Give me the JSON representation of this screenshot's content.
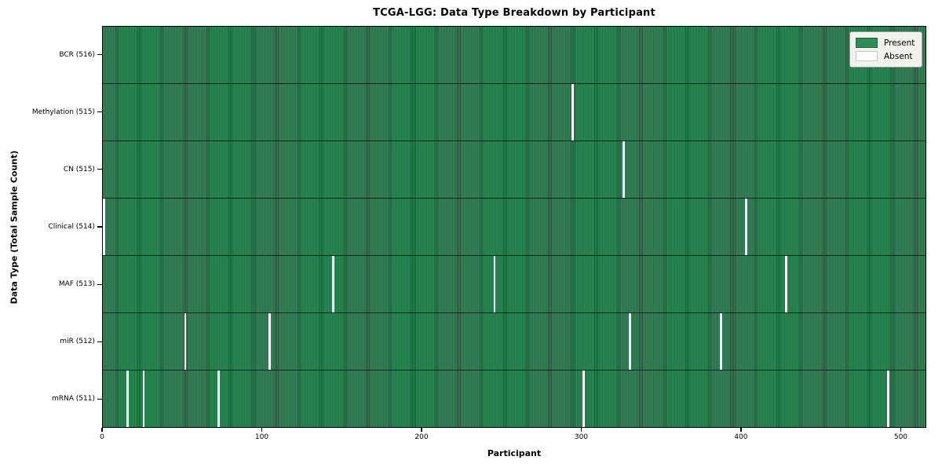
{
  "chart_data": {
    "type": "heatmap",
    "title": "TCGA-LGG: Data Type Breakdown by Participant",
    "xlabel": "Participant",
    "ylabel": "Data Type (Total Sample Count)",
    "x_ticks": [
      0,
      100,
      200,
      300,
      400,
      500
    ],
    "x_range": [
      0,
      516
    ],
    "n_participants": 516,
    "grid": false,
    "legend_position": "upper right",
    "legend": [
      {
        "label": "Present",
        "color": "#2e8b57"
      },
      {
        "label": "Absent",
        "color": "#ffffff"
      }
    ],
    "colors": {
      "present": "#2e8b57",
      "present_edge": "#1c5134",
      "absent": "#ffffff"
    },
    "rows": [
      {
        "data_type": "BCR",
        "label": "BCR (516)",
        "present_count": 516,
        "absent_participants": []
      },
      {
        "data_type": "Methylation",
        "label": "Methylation (515)",
        "present_count": 515,
        "absent_participants": [
          294
        ]
      },
      {
        "data_type": "CN",
        "label": "CN (515)",
        "present_count": 515,
        "absent_participants": [
          326
        ]
      },
      {
        "data_type": "Clinical",
        "label": "Clinical (514)",
        "present_count": 514,
        "absent_participants": [
          0,
          403
        ]
      },
      {
        "data_type": "MAF",
        "label": "MAF (513)",
        "present_count": 513,
        "absent_participants": [
          144,
          245,
          428
        ]
      },
      {
        "data_type": "miR",
        "label": "miR (512)",
        "present_count": 512,
        "absent_participants": [
          51,
          104,
          330,
          387
        ]
      },
      {
        "data_type": "mRNA",
        "label": "mRNA (511)",
        "present_count": 511,
        "absent_participants": [
          15,
          25,
          72,
          301,
          492
        ]
      }
    ]
  }
}
